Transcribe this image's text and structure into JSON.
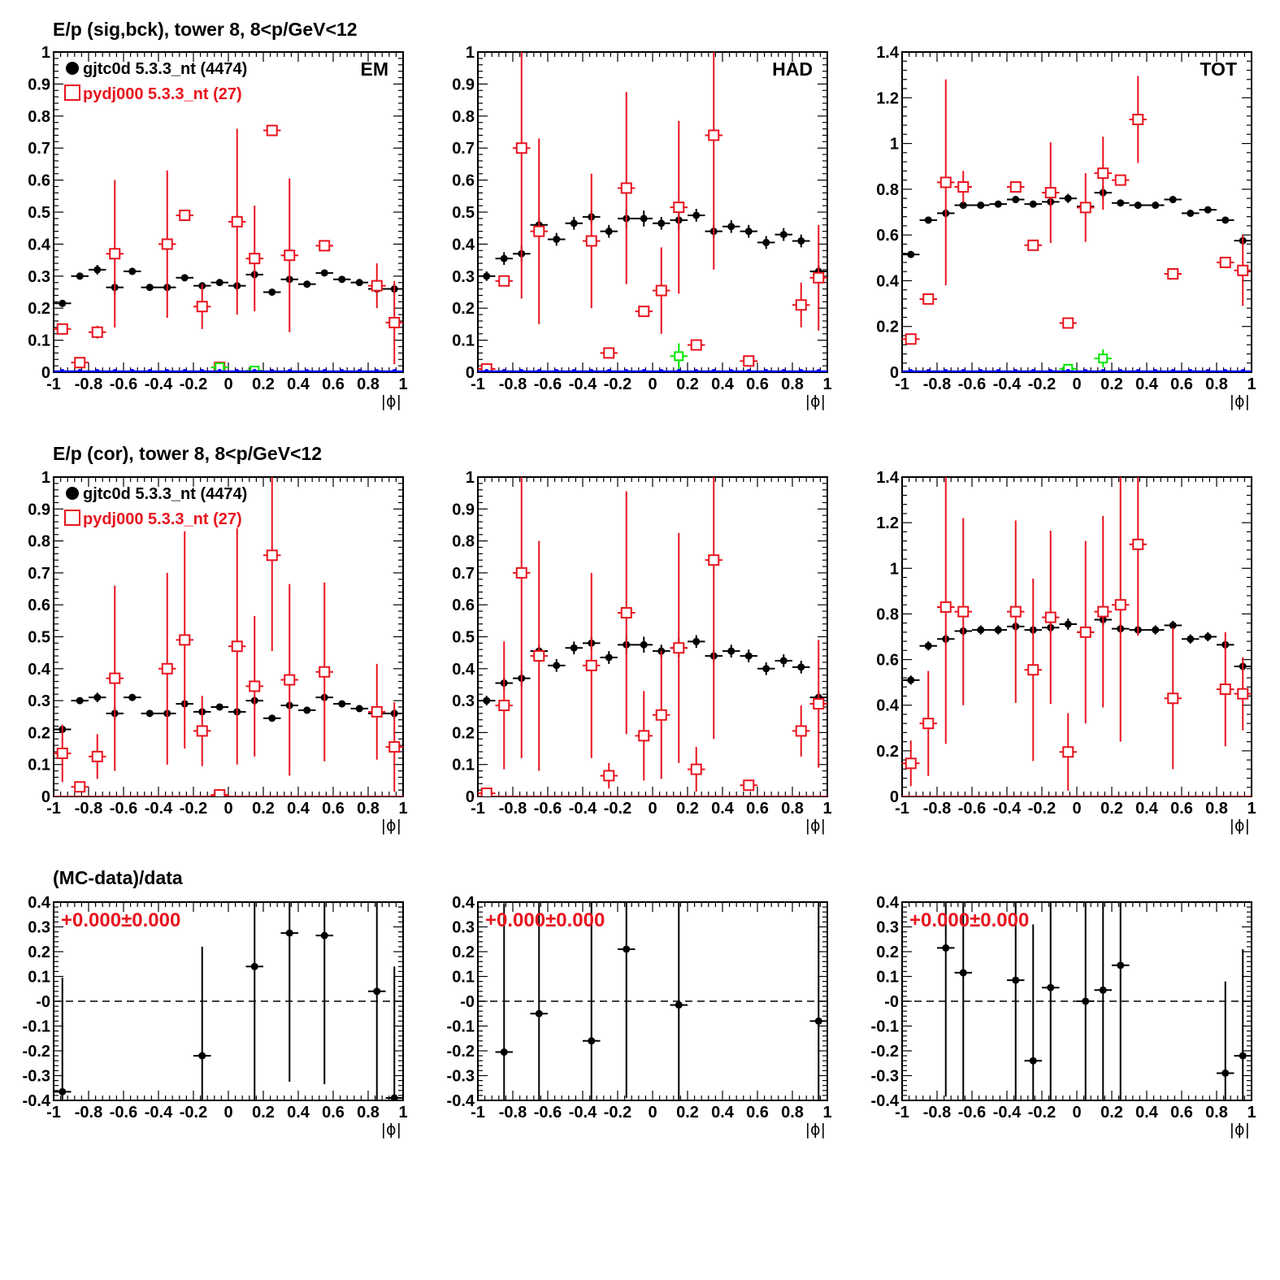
{
  "colors": {
    "data": "#000000",
    "mc": "#e8141e",
    "sig": "#00e600",
    "bck": "#0000ff",
    "axis": "#000000"
  },
  "row_titles": [
    "E/p (sig,bck), tower 8,  8<p/GeV<12",
    "E/p (cor), tower 8,  8<p/GeV<12",
    "(MC-data)/data"
  ],
  "legend": {
    "data_label": "gjtc0d 5.3.3_nt (4474)",
    "mc_label": "pydj000 5.3.3_nt (27)"
  },
  "column_labels": [
    "EM",
    "HAD",
    "TOT"
  ],
  "xlabel": "|ϕ|",
  "x_ticks": [
    "-1",
    "-0.8",
    "-0.6",
    "-0.4",
    "-0.2",
    "0",
    "0.2",
    "0.4",
    "0.6",
    "0.8",
    "1"
  ],
  "y_ticks_ep": [
    "0",
    "0.1",
    "0.2",
    "0.3",
    "0.4",
    "0.5",
    "0.6",
    "0.7",
    "0.8",
    "0.9",
    "1"
  ],
  "y_ticks_tot": [
    "0",
    "0.2",
    "0.4",
    "0.6",
    "0.8",
    "1",
    "1.2",
    "1.4"
  ],
  "y_ticks_ratio": [
    "-0.4",
    "-0.3",
    "-0.2",
    "-0.1",
    "-0",
    "0.1",
    "0.2",
    "0.3",
    "0.4"
  ],
  "ratio_text": "+0.000±0.000",
  "chart_data": [
    {
      "type": "scatter",
      "id": "r1c1",
      "title": "E/p (sig,bck), tower 8,  8<p/GeV<12",
      "label": "EM",
      "xlim": [
        -1,
        1
      ],
      "ylim": [
        0,
        1
      ],
      "legend": "top-left",
      "x": [
        -0.95,
        -0.85,
        -0.75,
        -0.65,
        -0.55,
        -0.45,
        -0.35,
        -0.25,
        -0.15,
        -0.05,
        0.05,
        0.15,
        0.25,
        0.35,
        0.45,
        0.55,
        0.65,
        0.75,
        0.85,
        0.95
      ],
      "series": [
        {
          "name": "gjtc0d 5.3.3_nt (4474)",
          "y": [
            0.215,
            0.3,
            0.32,
            0.265,
            0.315,
            0.265,
            0.265,
            0.295,
            0.27,
            0.28,
            0.27,
            0.305,
            0.25,
            0.29,
            0.275,
            0.31,
            0.29,
            0.28,
            0.26,
            0.26
          ],
          "err": [
            0.01,
            0.01,
            0.015,
            0.02,
            0.01,
            0.01,
            0.01,
            0.01,
            0.01,
            0.01,
            0.01,
            0.015,
            0.01,
            0.01,
            0.01,
            0.01,
            0.01,
            0.01,
            0.01,
            0.015
          ]
        },
        {
          "name": "pydj000 5.3.3_nt (27)",
          "y": [
            0.135,
            0.03,
            0.125,
            0.37,
            null,
            null,
            0.4,
            0.49,
            0.205,
            0.015,
            0.47,
            0.355,
            0.755,
            0.365,
            null,
            0.395,
            null,
            null,
            0.27,
            0.155
          ],
          "err": [
            0.01,
            0.01,
            0.02,
            0.23,
            null,
            null,
            0.23,
            0.01,
            0.07,
            0.01,
            0.29,
            0.165,
            0.01,
            0.24,
            null,
            0.01,
            null,
            null,
            0.07,
            0.13
          ]
        },
        {
          "name": "sig",
          "y": [
            0,
            0,
            0,
            0,
            0,
            0,
            0,
            0,
            0,
            0.015,
            0,
            0.005,
            0,
            0,
            0,
            0,
            0,
            0,
            0.003,
            0
          ],
          "err": [
            0,
            0,
            0,
            0,
            0,
            0,
            0,
            0,
            0,
            0.01,
            0,
            0.01,
            0,
            0,
            0,
            0,
            0,
            0,
            0.01,
            0
          ]
        },
        {
          "name": "bck",
          "y": [
            0,
            0,
            0,
            0,
            0,
            0,
            0,
            0,
            0,
            0,
            0,
            0,
            0,
            0,
            0,
            0,
            0,
            0,
            0,
            0
          ]
        }
      ]
    },
    {
      "type": "scatter",
      "id": "r1c2",
      "label": "HAD",
      "xlim": [
        -1,
        1
      ],
      "ylim": [
        0,
        1
      ],
      "x": [
        -0.95,
        -0.85,
        -0.75,
        -0.65,
        -0.55,
        -0.45,
        -0.35,
        -0.25,
        -0.15,
        -0.05,
        0.05,
        0.15,
        0.25,
        0.35,
        0.45,
        0.55,
        0.65,
        0.75,
        0.85,
        0.95
      ],
      "series": [
        {
          "name": "data",
          "y": [
            0.3,
            0.355,
            0.37,
            0.46,
            0.415,
            0.465,
            0.485,
            0.44,
            0.48,
            0.48,
            0.465,
            0.475,
            0.49,
            0.44,
            0.455,
            0.44,
            0.405,
            0.43,
            0.41,
            0.315
          ],
          "err": [
            0.015,
            0.02,
            0.025,
            0.02,
            0.02,
            0.02,
            0.02,
            0.02,
            0.03,
            0.025,
            0.02,
            0.03,
            0.02,
            0.02,
            0.02,
            0.02,
            0.02,
            0.02,
            0.02,
            0.02
          ]
        },
        {
          "name": "mc",
          "y": [
            0.01,
            0.285,
            0.7,
            0.44,
            null,
            null,
            0.41,
            0.06,
            0.575,
            0.19,
            0.255,
            0.515,
            0.085,
            0.74,
            null,
            0.035,
            null,
            null,
            0.21,
            0.295
          ],
          "err": [
            0.01,
            0.01,
            0.47,
            0.29,
            null,
            null,
            0.21,
            0.01,
            0.3,
            0.01,
            0.135,
            0.27,
            0.01,
            0.42,
            null,
            0.01,
            null,
            null,
            0.07,
            0.165
          ]
        },
        {
          "name": "sig",
          "y": [
            0,
            0,
            0,
            0,
            0,
            0,
            0,
            0,
            0,
            0,
            0,
            0.05,
            0,
            0,
            0,
            0,
            0,
            0,
            0,
            0
          ],
          "err": [
            0,
            0,
            0,
            0,
            0,
            0,
            0,
            0,
            0,
            0,
            0,
            0.04,
            0,
            0,
            0,
            0,
            0,
            0,
            0,
            0
          ]
        },
        {
          "name": "bck",
          "y": [
            0,
            0,
            0,
            0,
            0,
            0,
            0,
            0,
            0,
            0,
            0,
            0,
            0,
            0,
            0,
            0,
            0,
            0,
            0,
            0
          ]
        }
      ]
    },
    {
      "type": "scatter",
      "id": "r1c3",
      "label": "TOT",
      "xlim": [
        -1,
        1
      ],
      "ylim": [
        0,
        1.4
      ],
      "x": [
        -0.95,
        -0.85,
        -0.75,
        -0.65,
        -0.55,
        -0.45,
        -0.35,
        -0.25,
        -0.15,
        -0.05,
        0.05,
        0.15,
        0.25,
        0.35,
        0.45,
        0.55,
        0.65,
        0.75,
        0.85,
        0.95
      ],
      "series": [
        {
          "name": "data",
          "y": [
            0.515,
            0.665,
            0.695,
            0.73,
            0.73,
            0.735,
            0.755,
            0.735,
            0.745,
            0.76,
            0.725,
            0.785,
            0.74,
            0.73,
            0.73,
            0.755,
            0.695,
            0.71,
            0.665,
            0.575
          ],
          "err": [
            0.015,
            0.015,
            0.02,
            0.015,
            0.015,
            0.015,
            0.015,
            0.015,
            0.02,
            0.02,
            0.02,
            0.03,
            0.015,
            0.015,
            0.015,
            0.015,
            0.015,
            0.015,
            0.015,
            0.02
          ]
        },
        {
          "name": "mc",
          "y": [
            0.145,
            0.32,
            0.83,
            0.81,
            null,
            null,
            0.81,
            0.555,
            0.785,
            0.215,
            0.72,
            0.87,
            0.84,
            1.105,
            null,
            0.43,
            null,
            null,
            0.48,
            0.445
          ],
          "err": [
            0.01,
            0.01,
            0.45,
            0.07,
            null,
            null,
            0.01,
            0.01,
            0.22,
            0.01,
            0.15,
            0.16,
            0.01,
            0.19,
            null,
            0.01,
            null,
            null,
            0.01,
            0.155
          ]
        },
        {
          "name": "sig",
          "y": [
            0,
            0,
            0,
            0,
            0,
            0,
            0,
            0,
            0,
            0.015,
            0,
            0.06,
            0,
            0,
            0,
            0,
            0,
            0,
            0.003,
            0
          ],
          "err": [
            0,
            0,
            0,
            0,
            0,
            0,
            0,
            0,
            0,
            0.01,
            0,
            0.04,
            0,
            0,
            0,
            0,
            0,
            0,
            0.01,
            0
          ]
        },
        {
          "name": "bck",
          "y": [
            0,
            0,
            0,
            0,
            0,
            0,
            0,
            0,
            0,
            0,
            0,
            0,
            0,
            0,
            0,
            0,
            0,
            0,
            0,
            0
          ]
        }
      ]
    },
    {
      "type": "scatter",
      "id": "r2c1",
      "title": "E/p (cor), tower 8,  8<p/GeV<12",
      "xlim": [
        -1,
        1
      ],
      "ylim": [
        0,
        1
      ],
      "legend": "top-left",
      "x": [
        -0.95,
        -0.85,
        -0.75,
        -0.65,
        -0.55,
        -0.45,
        -0.35,
        -0.25,
        -0.15,
        -0.05,
        0.05,
        0.15,
        0.25,
        0.35,
        0.45,
        0.55,
        0.65,
        0.75,
        0.85,
        0.95
      ],
      "series": [
        {
          "name": "gjtc0d 5.3.3_nt (4474)",
          "y": [
            0.21,
            0.3,
            0.31,
            0.26,
            0.31,
            0.26,
            0.26,
            0.29,
            0.265,
            0.28,
            0.265,
            0.3,
            0.245,
            0.285,
            0.27,
            0.31,
            0.29,
            0.275,
            0.26,
            0.26
          ],
          "err": [
            0.01,
            0.01,
            0.015,
            0.02,
            0.01,
            0.01,
            0.01,
            0.01,
            0.01,
            0.01,
            0.01,
            0.015,
            0.01,
            0.01,
            0.01,
            0.01,
            0.01,
            0.01,
            0.01,
            0.015
          ]
        },
        {
          "name": "pydj000 5.3.3_nt (27)",
          "y": [
            0.135,
            0.03,
            0.125,
            0.37,
            null,
            null,
            0.4,
            0.49,
            0.205,
            0.005,
            0.47,
            0.345,
            0.755,
            0.365,
            null,
            0.39,
            null,
            null,
            0.265,
            0.155
          ],
          "err": [
            0.09,
            0.01,
            0.07,
            0.29,
            null,
            null,
            0.3,
            0.34,
            0.11,
            0.01,
            0.37,
            0.22,
            0.3,
            0.3,
            null,
            0.28,
            null,
            null,
            0.15,
            0.14
          ]
        }
      ]
    },
    {
      "type": "scatter",
      "id": "r2c2",
      "xlim": [
        -1,
        1
      ],
      "ylim": [
        0,
        1
      ],
      "x": [
        -0.95,
        -0.85,
        -0.75,
        -0.65,
        -0.55,
        -0.45,
        -0.35,
        -0.25,
        -0.15,
        -0.05,
        0.05,
        0.15,
        0.25,
        0.35,
        0.45,
        0.55,
        0.65,
        0.75,
        0.85,
        0.95
      ],
      "series": [
        {
          "name": "data",
          "y": [
            0.3,
            0.355,
            0.37,
            0.455,
            0.41,
            0.465,
            0.48,
            0.435,
            0.475,
            0.475,
            0.455,
            0.465,
            0.485,
            0.44,
            0.455,
            0.44,
            0.4,
            0.425,
            0.405,
            0.31
          ],
          "err": [
            0.015,
            0.02,
            0.025,
            0.02,
            0.02,
            0.02,
            0.02,
            0.02,
            0.03,
            0.025,
            0.02,
            0.03,
            0.02,
            0.02,
            0.02,
            0.02,
            0.02,
            0.02,
            0.02,
            0.02
          ]
        },
        {
          "name": "mc",
          "y": [
            0.01,
            0.285,
            0.7,
            0.44,
            null,
            null,
            0.41,
            0.065,
            0.575,
            0.19,
            0.255,
            0.465,
            0.085,
            0.74,
            null,
            0.035,
            null,
            null,
            0.205,
            0.29
          ],
          "err": [
            0.01,
            0.2,
            0.58,
            0.36,
            null,
            null,
            0.29,
            0.04,
            0.38,
            0.14,
            0.2,
            0.36,
            0.07,
            0.56,
            null,
            0.01,
            null,
            null,
            0.08,
            0.2
          ]
        }
      ]
    },
    {
      "type": "scatter",
      "id": "r2c3",
      "xlim": [
        -1,
        1
      ],
      "ylim": [
        0,
        1.4
      ],
      "x": [
        -0.95,
        -0.85,
        -0.75,
        -0.65,
        -0.55,
        -0.45,
        -0.35,
        -0.25,
        -0.15,
        -0.05,
        0.05,
        0.15,
        0.25,
        0.35,
        0.45,
        0.55,
        0.65,
        0.75,
        0.85,
        0.95
      ],
      "series": [
        {
          "name": "data",
          "y": [
            0.51,
            0.66,
            0.69,
            0.725,
            0.73,
            0.73,
            0.745,
            0.73,
            0.74,
            0.755,
            0.72,
            0.775,
            0.735,
            0.73,
            0.73,
            0.75,
            0.69,
            0.7,
            0.665,
            0.57
          ],
          "err": [
            0.02,
            0.02,
            0.025,
            0.02,
            0.02,
            0.02,
            0.02,
            0.02,
            0.025,
            0.025,
            0.02,
            0.03,
            0.02,
            0.02,
            0.02,
            0.02,
            0.02,
            0.02,
            0.02,
            0.02
          ]
        },
        {
          "name": "mc",
          "y": [
            0.145,
            0.32,
            0.83,
            0.81,
            null,
            null,
            0.81,
            0.555,
            0.785,
            0.195,
            0.72,
            0.81,
            0.84,
            1.105,
            null,
            0.43,
            null,
            null,
            0.47,
            0.45
          ],
          "err": [
            0.1,
            0.23,
            0.6,
            0.41,
            null,
            null,
            0.4,
            0.4,
            0.38,
            0.17,
            0.4,
            0.42,
            0.6,
            0.4,
            null,
            0.31,
            null,
            null,
            0.25,
            0.16
          ]
        }
      ]
    },
    {
      "type": "scatter",
      "id": "r3c1",
      "title": "(MC-data)/data",
      "text": "+0.000±0.000",
      "xlim": [
        -1,
        1
      ],
      "ylim": [
        -0.4,
        0.4
      ],
      "reference_line": 0,
      "x": [
        -0.95,
        -0.15,
        0.15,
        0.35,
        0.55,
        0.85,
        0.95
      ],
      "y": [
        -0.365,
        -0.22,
        0.14,
        0.275,
        0.265,
        0.04,
        -0.39
      ],
      "err": [
        0.46,
        0.44,
        0.6,
        0.6,
        0.6,
        0.6,
        0.53
      ]
    },
    {
      "type": "scatter",
      "id": "r3c2",
      "text": "+0.000±0.000",
      "xlim": [
        -1,
        1
      ],
      "ylim": [
        -0.4,
        0.4
      ],
      "reference_line": 0,
      "x": [
        -0.85,
        -0.65,
        -0.35,
        -0.15,
        0.15,
        0.95
      ],
      "y": [
        -0.205,
        -0.05,
        -0.16,
        0.21,
        -0.015,
        -0.08
      ],
      "err": [
        0.6,
        0.6,
        0.6,
        0.6,
        0.6,
        0.6
      ]
    },
    {
      "type": "scatter",
      "id": "r3c3",
      "text": "+0.000±0.000",
      "xlim": [
        -1,
        1
      ],
      "ylim": [
        -0.4,
        0.4
      ],
      "reference_line": 0,
      "x": [
        -0.75,
        -0.65,
        -0.35,
        -0.25,
        -0.15,
        0.05,
        0.15,
        0.25,
        0.85,
        0.95
      ],
      "y": [
        0.215,
        0.115,
        0.085,
        -0.24,
        0.055,
        0.0,
        0.045,
        0.145,
        -0.29,
        -0.22
      ],
      "err": [
        0.6,
        0.6,
        0.6,
        0.55,
        0.6,
        0.6,
        0.6,
        0.6,
        0.37,
        0.43
      ]
    }
  ]
}
